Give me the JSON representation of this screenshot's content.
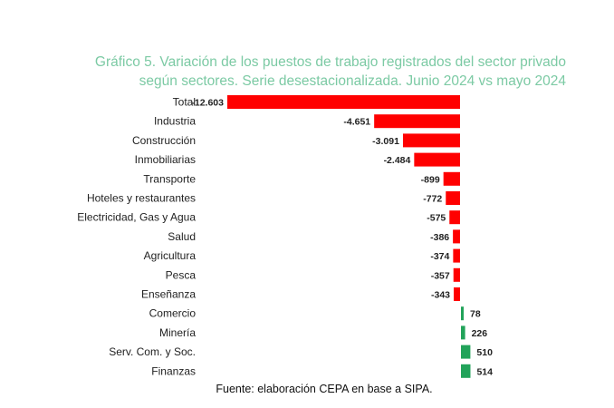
{
  "chart_data": {
    "type": "bar",
    "orientation": "horizontal",
    "title": "Gráfico 5. Variación de los puestos de trabajo registrados del sector privado según sectores. Serie desestacionalizada. Junio 2024 vs mayo 2024",
    "title_lines": [
      "Gráfico 5. Variación de los puestos de trabajo registrados del sector privado",
      "según sectores. Serie desestacionalizada. Junio 2024 vs mayo 2024"
    ],
    "categories": [
      "Total",
      "Industria",
      "Construcción",
      "Inmobiliarias",
      "Transporte",
      "Hoteles y restaurantes",
      "Electricidad, Gas y Agua",
      "Salud",
      "Agricultura",
      "Pesca",
      "Enseñanza",
      "Comercio",
      "Minería",
      "Serv. Com. y Soc.",
      "Finanzas"
    ],
    "values": [
      -12603,
      -4651,
      -3091,
      -2484,
      -899,
      -772,
      -575,
      -386,
      -374,
      -357,
      -343,
      78,
      226,
      510,
      514
    ],
    "value_labels": [
      "-12.603",
      "-4.651",
      "-3.091",
      "-2.484",
      "-899",
      "-772",
      "-575",
      "-386",
      "-374",
      "-357",
      "-343",
      "78",
      "226",
      "510",
      "514"
    ],
    "negative_color": "#ff0000",
    "positive_color": "#22a35a",
    "xlabel": "",
    "ylabel": "",
    "grid": false,
    "legend": "none"
  },
  "source": "Fuente: elaboración CEPA en base a SIPA."
}
